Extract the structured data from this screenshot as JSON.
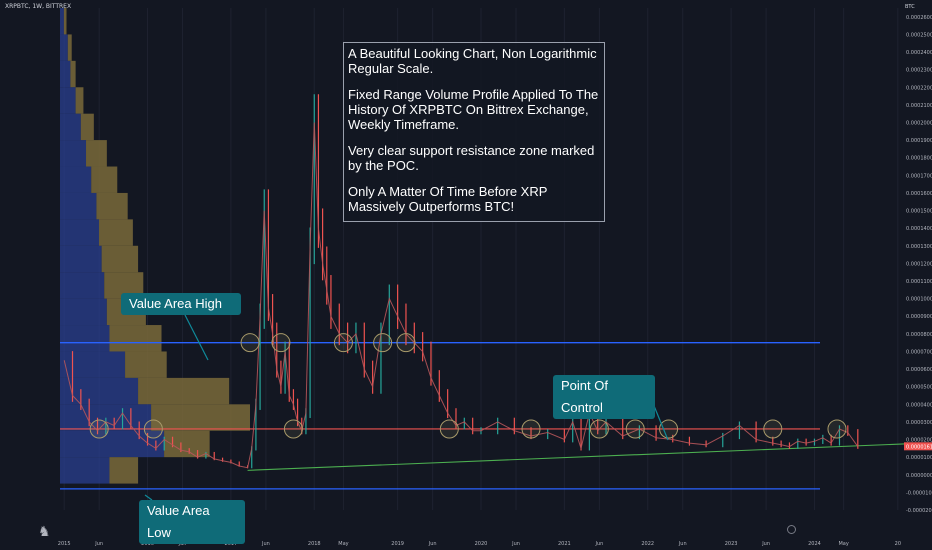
{
  "header": {
    "title": "XRPBTC, 1W, BITTREX",
    "currency": "BTC"
  },
  "note": {
    "lines": [
      "A Beautiful Looking Chart, Non Logarithmic Regular Scale.",
      "Fixed Range Volume Profile Applied To The History Of XRPBTC On Bittrex Exchange, Weekly Timeframe.",
      "Very clear support resistance zone marked by the POC.",
      "Only A Matter Of Time Before XRP Massively Outperforms BTC!"
    ]
  },
  "callouts": {
    "value_area_high": "Value Area High",
    "value_area_low": "Value Area Low",
    "point_of_control": "Point Of Control"
  },
  "colors": {
    "background": "#131722",
    "up_candle": "#26a69a",
    "down_candle": "#ef5350",
    "value_area_line": "#2962ff",
    "poc_line": "#ef5350",
    "trend_line": "#4caf50",
    "profile_up": "#2a3f8f",
    "profile_down": "#7a6a3a",
    "callout_bg": "#0f6b78",
    "circle": "#a89a6a"
  },
  "chart_data": {
    "type": "line",
    "title": "XRPBTC, 1W, BITTREX",
    "y_unit": "BTC",
    "y_ticks": [
      "0.00026000",
      "0.00025000",
      "0.00024000",
      "0.00023000",
      "0.00022000",
      "0.00021000",
      "0.00020000",
      "0.00019000",
      "0.00018000",
      "0.00017000",
      "0.00016000",
      "0.00015000",
      "0.00014000",
      "0.00013000",
      "0.00012000",
      "0.00011000",
      "0.00010000",
      "0.00009000",
      "0.00008000",
      "0.00007000",
      "0.00006000",
      "0.00005000",
      "0.00004000",
      "0.00003000",
      "0.00002000",
      "0.00001000",
      "0.00000000",
      "-0.00001000",
      "-0.00002000"
    ],
    "ylim": [
      -2e-05,
      0.000265
    ],
    "x_ticks": [
      "2015",
      "Jun",
      "2016",
      "Jun",
      "2017",
      "Jun",
      "2018",
      "May",
      "2019",
      "Jun",
      "2020",
      "Jun",
      "2021",
      "Jun",
      "2022",
      "Jun",
      "2023",
      "Jun",
      "2024",
      "May",
      "20"
    ],
    "x_tick_positions_year": [
      2015.0,
      2015.42,
      2016.0,
      2016.42,
      2017.0,
      2017.42,
      2018.0,
      2018.35,
      2019.0,
      2019.42,
      2020.0,
      2020.42,
      2021.0,
      2021.42,
      2022.0,
      2022.42,
      2023.0,
      2023.42,
      2024.0,
      2024.35,
      2025.0
    ],
    "xlim": [
      2014.95,
      2025.05
    ],
    "last_price": "0.00001616",
    "levels": {
      "value_area_high": 7.5e-05,
      "point_of_control": 2.6e-05,
      "value_area_low": -8e-06
    },
    "trend_line": {
      "from": [
        2017.2,
        2.5e-06
      ],
      "to": [
        2024.52,
        1.6e-05
      ]
    },
    "series": [
      {
        "x": [
          2015.0,
          2015.1,
          2015.2,
          2015.3,
          2015.4,
          2015.5,
          2015.6,
          2015.7,
          2015.8,
          2015.9,
          2016.0,
          2016.1,
          2016.2,
          2016.3,
          2016.4,
          2016.5,
          2016.6,
          2016.7,
          2016.8,
          2016.9,
          2017.0,
          2017.1,
          2017.2,
          2017.25,
          2017.3,
          2017.35,
          2017.4,
          2017.45,
          2017.5,
          2017.55,
          2017.6,
          2017.65,
          2017.7,
          2017.75,
          2017.8,
          2017.85,
          2017.9,
          2017.95,
          2018.0,
          2018.05,
          2018.1,
          2018.15,
          2018.2,
          2018.3,
          2018.4,
          2018.5,
          2018.6,
          2018.7,
          2018.8,
          2018.9,
          2019.0,
          2019.1,
          2019.2,
          2019.3,
          2019.4,
          2019.5,
          2019.6,
          2019.7,
          2019.8,
          2019.9,
          2020.0,
          2020.2,
          2020.4,
          2020.6,
          2020.8,
          2021.0,
          2021.1,
          2021.2,
          2021.3,
          2021.4,
          2021.5,
          2021.7,
          2021.9,
          2022.1,
          2022.3,
          2022.5,
          2022.7,
          2022.9,
          2023.1,
          2023.3,
          2023.5,
          2023.6,
          2023.7,
          2023.8,
          2023.9,
          2024.0,
          2024.1,
          2024.2,
          2024.3,
          2024.4,
          2024.52
        ],
        "y": [
          6.5e-05,
          4.5e-05,
          4e-05,
          3e-05,
          2.5e-05,
          3e-05,
          2.8e-05,
          3.5e-05,
          2.8e-05,
          2.2e-05,
          1.8e-05,
          1.5e-05,
          2e-05,
          1.7e-05,
          1.4e-05,
          1.3e-05,
          1e-05,
          1.2e-05,
          9e-06,
          8e-06,
          7e-06,
          5e-06,
          4e-06,
          1.5e-05,
          4e-05,
          9e-05,
          0.00015,
          9.5e-05,
          8e-05,
          6e-05,
          5e-05,
          7e-05,
          4.5e-05,
          4e-05,
          3e-05,
          2.5e-05,
          3.5e-05,
          0.00013,
          0.0002,
          0.00014,
          0.00012,
          0.000105,
          9e-05,
          8e-05,
          7.5e-05,
          8e-05,
          6e-05,
          5e-05,
          8e-05,
          0.0001,
          9e-05,
          8e-05,
          7.5e-05,
          7e-05,
          5.5e-05,
          4.5e-05,
          3.5e-05,
          2.8e-05,
          3e-05,
          2.5e-05,
          2.5e-05,
          3e-05,
          2.5e-05,
          2.2e-05,
          2.4e-05,
          2e-05,
          3e-05,
          1.5e-05,
          3.5e-05,
          2.5e-05,
          3e-05,
          2.2e-05,
          2.6e-05,
          2.1e-05,
          2e-05,
          1.8e-05,
          1.7e-05,
          2.2e-05,
          2.8e-05,
          2e-05,
          1.8e-05,
          1.7e-05,
          1.6e-05,
          1.9e-05,
          1.8e-05,
          1.9e-05,
          2.1e-05,
          1.8e-05,
          2.6e-05,
          2.4e-05,
          1.6e-05
        ]
      }
    ],
    "volume_profile_rows": [
      {
        "y_low": 0.00025,
        "y_high": 0.000265,
        "up": 0.3,
        "down": 0.2
      },
      {
        "y_low": 0.000235,
        "y_high": 0.00025,
        "up": 0.6,
        "down": 0.3
      },
      {
        "y_low": 0.00022,
        "y_high": 0.000235,
        "up": 0.8,
        "down": 0.4
      },
      {
        "y_low": 0.000205,
        "y_high": 0.00022,
        "up": 1.2,
        "down": 0.6
      },
      {
        "y_low": 0.00019,
        "y_high": 0.000205,
        "up": 1.6,
        "down": 1.0
      },
      {
        "y_low": 0.000175,
        "y_high": 0.00019,
        "up": 2.0,
        "down": 1.6
      },
      {
        "y_low": 0.00016,
        "y_high": 0.000175,
        "up": 2.4,
        "down": 2.0
      },
      {
        "y_low": 0.000145,
        "y_high": 0.00016,
        "up": 2.8,
        "down": 2.4
      },
      {
        "y_low": 0.00013,
        "y_high": 0.000145,
        "up": 3.0,
        "down": 2.6
      },
      {
        "y_low": 0.000115,
        "y_high": 0.00013,
        "up": 3.2,
        "down": 2.8
      },
      {
        "y_low": 0.0001,
        "y_high": 0.000115,
        "up": 3.4,
        "down": 3.0
      },
      {
        "y_low": 8.5e-05,
        "y_high": 0.0001,
        "up": 3.6,
        "down": 3.0
      },
      {
        "y_low": 7e-05,
        "y_high": 8.5e-05,
        "up": 3.8,
        "down": 4.0
      },
      {
        "y_low": 5.5e-05,
        "y_high": 7e-05,
        "up": 5.0,
        "down": 3.2
      },
      {
        "y_low": 4e-05,
        "y_high": 5.5e-05,
        "up": 6.0,
        "down": 7.0
      },
      {
        "y_low": 2.5e-05,
        "y_high": 4e-05,
        "up": 7.0,
        "down": 7.6
      },
      {
        "y_low": 1e-05,
        "y_high": 2.5e-05,
        "up": 8.0,
        "down": 3.5
      },
      {
        "y_low": -5e-06,
        "y_high": 1e-05,
        "up": 3.8,
        "down": 2.2
      }
    ],
    "highlight_circles": [
      [
        2015.42,
        2.6e-05
      ],
      [
        2016.07,
        2.6e-05
      ],
      [
        2017.23,
        7.5e-05
      ],
      [
        2017.6,
        7.5e-05
      ],
      [
        2017.75,
        2.6e-05
      ],
      [
        2018.35,
        7.5e-05
      ],
      [
        2018.82,
        7.5e-05
      ],
      [
        2019.1,
        7.5e-05
      ],
      [
        2019.62,
        2.6e-05
      ],
      [
        2020.6,
        2.6e-05
      ],
      [
        2021.42,
        2.6e-05
      ],
      [
        2021.85,
        2.6e-05
      ],
      [
        2022.25,
        2.6e-05
      ],
      [
        2023.5,
        2.6e-05
      ],
      [
        2024.27,
        2.6e-05
      ]
    ]
  }
}
